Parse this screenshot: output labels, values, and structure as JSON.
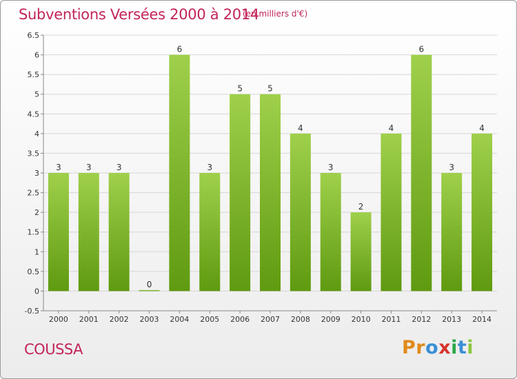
{
  "header": {
    "title": "Subventions Versées 2000 à 2014",
    "unit": "(en milliers d'€)"
  },
  "footer": {
    "commune": "COUSSA",
    "logo_letters": [
      "P",
      "r",
      "o",
      "x",
      "i",
      "t",
      "i"
    ]
  },
  "colors": {
    "title": "#c2245a",
    "bar_light": "#9fd04b",
    "bar_dark": "#5f9a10",
    "grid": "#d6d6d6"
  },
  "chart_data": {
    "type": "bar",
    "categories": [
      "2000",
      "2001",
      "2002",
      "2003",
      "2004",
      "2005",
      "2006",
      "2007",
      "2008",
      "2009",
      "2010",
      "2011",
      "2012",
      "2013",
      "2014"
    ],
    "values": [
      3,
      3,
      3,
      0,
      6,
      3,
      5,
      5,
      4,
      3,
      2,
      4,
      6,
      3,
      4
    ],
    "value_labels": [
      "3",
      "3",
      "3",
      "0",
      "6",
      "3",
      "5",
      "5",
      "4",
      "3",
      "2",
      "4",
      "6",
      "3",
      "4"
    ],
    "yticks": [
      "-0.5",
      "0",
      "0.5",
      "1",
      "1.5",
      "2",
      "2.5",
      "3",
      "3.5",
      "4",
      "4.5",
      "5",
      "5.5",
      "6",
      "6.5"
    ],
    "ylim": [
      -0.5,
      6.5
    ],
    "grid": true,
    "legend": "none"
  }
}
